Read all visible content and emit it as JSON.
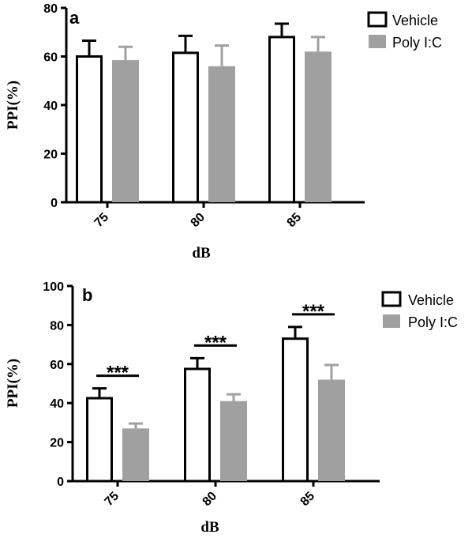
{
  "chart_data": [
    {
      "type": "bar",
      "panel_label": "a",
      "categories": [
        "75",
        "80",
        "85"
      ],
      "series": [
        {
          "name": "Vehicle",
          "values": [
            60,
            61.5,
            68
          ],
          "errors": [
            6.5,
            7,
            5.5
          ],
          "color": "#ffffff"
        },
        {
          "name": "Poly I:C",
          "values": [
            58.5,
            56,
            62
          ],
          "errors": [
            5.5,
            8.5,
            6
          ],
          "color": "#a0a0a0"
        }
      ],
      "xlabel": "dB",
      "ylabel": "PPI(%)",
      "ylim": [
        0,
        80
      ],
      "yticks": [
        "0",
        "20",
        "40",
        "60",
        "80"
      ],
      "significance": [],
      "legend_position": "top-right"
    },
    {
      "type": "bar",
      "panel_label": "b",
      "categories": [
        "75",
        "80",
        "85"
      ],
      "series": [
        {
          "name": "Vehicle",
          "values": [
            42.5,
            57.5,
            73
          ],
          "errors": [
            5,
            5.5,
            6
          ],
          "color": "#ffffff"
        },
        {
          "name": "Poly I:C",
          "values": [
            27,
            41,
            52
          ],
          "errors": [
            2.5,
            3.5,
            7.5
          ],
          "color": "#a0a0a0"
        }
      ],
      "xlabel": "dB",
      "ylabel": "PPI(%)",
      "ylim": [
        0,
        100
      ],
      "yticks": [
        "0",
        "20",
        "40",
        "60",
        "80",
        "100"
      ],
      "significance": [
        "***",
        "***",
        "***"
      ],
      "legend_position": "top-right"
    }
  ]
}
